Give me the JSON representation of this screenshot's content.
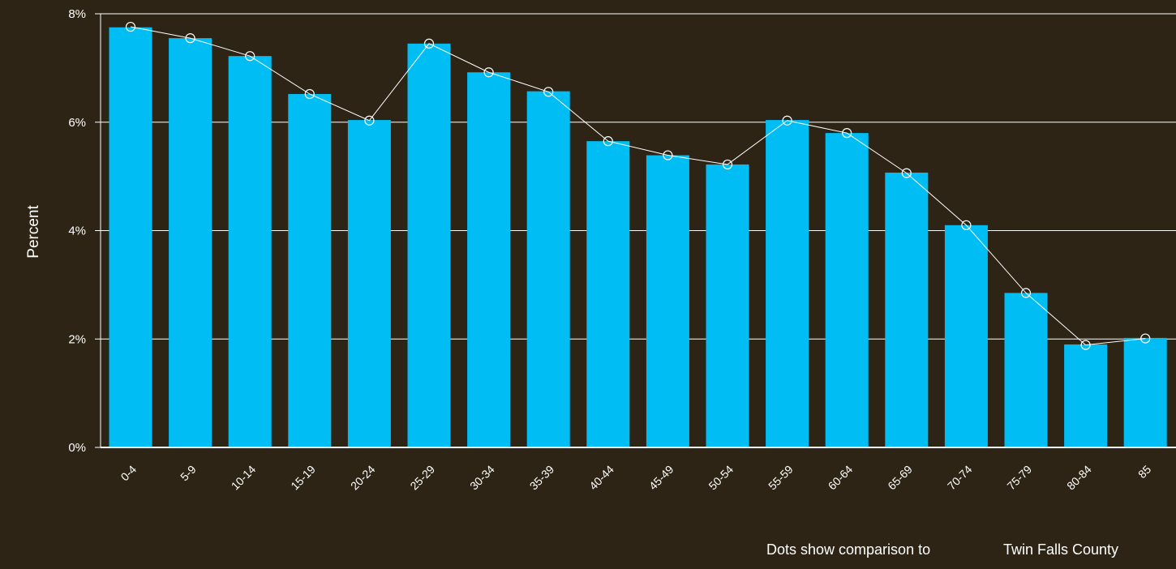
{
  "colors": {
    "background": "#2e2415",
    "bar": "#00bef4",
    "comparison": "#ffffff",
    "grid": "#ffffff"
  },
  "footer": {
    "text": "Dots show comparison to",
    "area": "Twin Falls County"
  },
  "chart_data": {
    "type": "bar",
    "title": "",
    "xlabel": "",
    "ylabel": "Percent",
    "ylim": [
      0,
      8
    ],
    "yticks": [
      0,
      2,
      4,
      6,
      8
    ],
    "ytick_labels": [
      "0%",
      "2%",
      "4%",
      "6%",
      "8%"
    ],
    "grid": true,
    "categories": [
      "0-4",
      "5-9",
      "10-14",
      "15-19",
      "20-24",
      "25-29",
      "30-34",
      "35-39",
      "40-44",
      "45-49",
      "50-54",
      "55-59",
      "60-64",
      "65-69",
      "70-74",
      "75-79",
      "80-84",
      "85"
    ],
    "series": [
      {
        "type": "bar",
        "values": [
          7.75,
          7.55,
          7.22,
          6.52,
          6.04,
          7.45,
          6.92,
          6.57,
          5.65,
          5.39,
          5.22,
          6.04,
          5.8,
          5.07,
          4.1,
          2.85,
          1.9,
          2.02
        ]
      },
      {
        "name": "Twin Falls County",
        "type": "line",
        "values": [
          7.76,
          7.55,
          7.22,
          6.52,
          6.03,
          7.45,
          6.92,
          6.56,
          5.65,
          5.39,
          5.22,
          6.03,
          5.8,
          5.06,
          4.1,
          2.85,
          1.89,
          2.01
        ]
      }
    ]
  }
}
